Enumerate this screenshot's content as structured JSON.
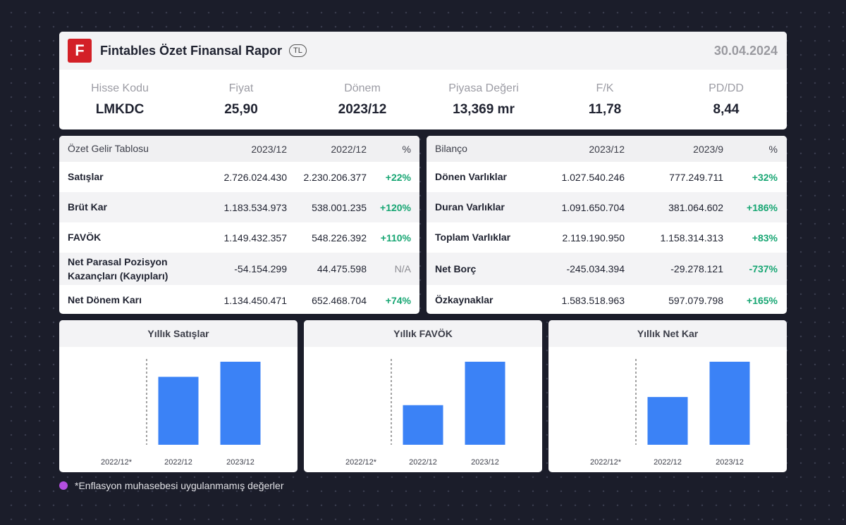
{
  "header": {
    "logo_letter": "F",
    "title": "Fintables Özet Finansal Rapor",
    "currency": "TL",
    "date": "30.04.2024"
  },
  "metrics": [
    {
      "label": "Hisse Kodu",
      "value": "LMKDC"
    },
    {
      "label": "Fiyat",
      "value": "25,90"
    },
    {
      "label": "Dönem",
      "value": "2023/12"
    },
    {
      "label": "Piyasa Değeri",
      "value": "13,369 mr"
    },
    {
      "label": "F/K",
      "value": "11,78"
    },
    {
      "label": "PD/DD",
      "value": "8,44"
    }
  ],
  "income": {
    "headers": [
      "Özet Gelir Tablosu",
      "2023/12",
      "2022/12",
      "%"
    ],
    "rows": [
      {
        "name": "Satışlar",
        "v1": "2.726.024.430",
        "v2": "2.230.206.377",
        "pct": "+22%"
      },
      {
        "name": "Brüt Kar",
        "v1": "1.183.534.973",
        "v2": "538.001.235",
        "pct": "+120%"
      },
      {
        "name": "FAVÖK",
        "v1": "1.149.432.357",
        "v2": "548.226.392",
        "pct": "+110%"
      },
      {
        "name": "Net Parasal Pozisyon\nKazançları (Kayıpları)",
        "v1": "-54.154.299",
        "v2": "44.475.598",
        "pct": "N/A"
      },
      {
        "name": "Net Dönem Karı",
        "v1": "1.134.450.471",
        "v2": "652.468.704",
        "pct": "+74%"
      }
    ]
  },
  "balance": {
    "headers": [
      "Bilanço",
      "2023/12",
      "2023/9",
      "%"
    ],
    "rows": [
      {
        "name": "Dönen Varlıklar",
        "v1": "1.027.540.246",
        "v2": "777.249.711",
        "pct": "+32%"
      },
      {
        "name": "Duran Varlıklar",
        "v1": "1.091.650.704",
        "v2": "381.064.602",
        "pct": "+186%"
      },
      {
        "name": "Toplam Varlıklar",
        "v1": "2.119.190.950",
        "v2": "1.158.314.313",
        "pct": "+83%"
      },
      {
        "name": "Net Borç",
        "v1": "-245.034.394",
        "v2": "-29.278.121",
        "pct": "-737%"
      },
      {
        "name": "Özkaynaklar",
        "v1": "1.583.518.963",
        "v2": "597.079.798",
        "pct": "+165%"
      }
    ]
  },
  "chart_data": [
    {
      "type": "bar",
      "title": "Yıllık Satışlar",
      "categories": [
        "2022/12*",
        "2022/12",
        "2023/12"
      ],
      "values": [
        null,
        2230206377,
        2726024430
      ],
      "color": "#3b82f6"
    },
    {
      "type": "bar",
      "title": "Yıllık FAVÖK",
      "categories": [
        "2022/12*",
        "2022/12",
        "2023/12"
      ],
      "values": [
        null,
        548226392,
        1149432357
      ],
      "color": "#3b82f6"
    },
    {
      "type": "bar",
      "title": "Yıllık Net Kar",
      "categories": [
        "2022/12*",
        "2022/12",
        "2023/12"
      ],
      "values": [
        null,
        652468704,
        1134450471
      ],
      "color": "#3b82f6"
    }
  ],
  "footnote": {
    "text": "*Enflasyon muhasebesi uygulanmamış değerler",
    "dot_color": "#b44fe0"
  },
  "colors": {
    "positive": "#17a673",
    "negative": "#17a673",
    "brand": "#d32027"
  }
}
